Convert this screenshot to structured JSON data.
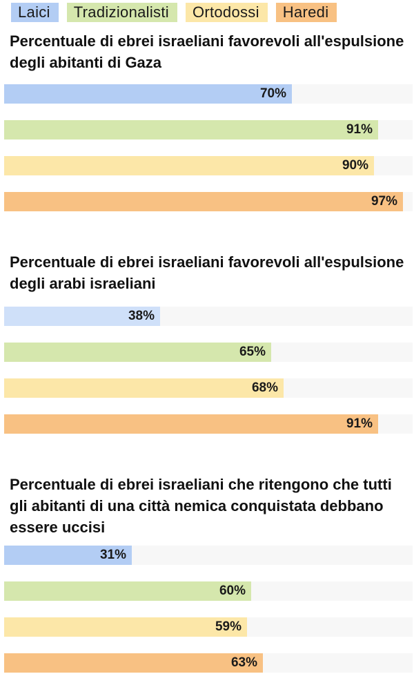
{
  "legend": [
    {
      "label": "Laici",
      "color": "#b3cdf4"
    },
    {
      "label": "Tradizionalisti",
      "color": "#d5e7ad"
    },
    {
      "label": "Ortodossi",
      "color": "#fce7a8"
    },
    {
      "label": "Haredi",
      "color": "#f8c183"
    }
  ],
  "chart_data": [
    {
      "type": "bar",
      "orientation": "horizontal",
      "title": "Percentuale di ebrei israeliani favorevoli all'espulsione degli abitanti di Gaza",
      "categories": [
        "Laici",
        "Tradizionalisti",
        "Ortodossi",
        "Haredi"
      ],
      "values": [
        70,
        91,
        90,
        97
      ],
      "value_labels": [
        "70%",
        "91%",
        "90%",
        "97%"
      ],
      "colors": [
        "#b3cdf4",
        "#d5e7ad",
        "#fce7a8",
        "#f8c183"
      ],
      "xlim": [
        0,
        100
      ]
    },
    {
      "type": "bar",
      "orientation": "horizontal",
      "title": "Percentuale di ebrei israeliani favorevoli all'espulsione degli arabi israeliani",
      "categories": [
        "Laici",
        "Tradizionalisti",
        "Ortodossi",
        "Haredi"
      ],
      "values": [
        38,
        65,
        68,
        91
      ],
      "value_labels": [
        "38%",
        "65%",
        "68%",
        "91%"
      ],
      "colors": [
        "#cfe0f9",
        "#d5e7ad",
        "#fce7a8",
        "#f8c183"
      ],
      "xlim": [
        0,
        100
      ]
    },
    {
      "type": "bar",
      "orientation": "horizontal",
      "title": "Percentuale di ebrei israeliani che ritengono che tutti gli abitanti di una città nemica conquistata debbano essere uccisi",
      "categories": [
        "Laici",
        "Tradizionalisti",
        "Ortodossi",
        "Haredi"
      ],
      "values": [
        31,
        60,
        59,
        63
      ],
      "value_labels": [
        "31%",
        "60%",
        "59%",
        "63%"
      ],
      "colors": [
        "#b3cdf4",
        "#d5e7ad",
        "#fce7a8",
        "#f8c183"
      ],
      "xlim": [
        0,
        100
      ]
    }
  ]
}
